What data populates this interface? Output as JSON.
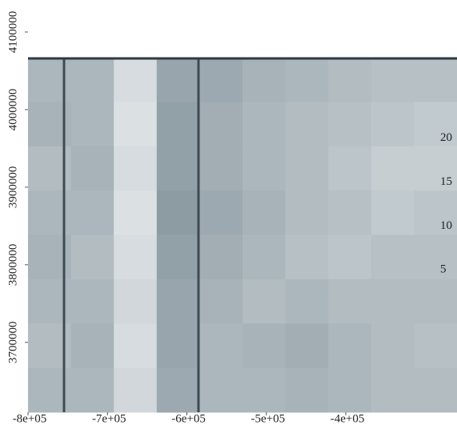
{
  "chart_data": {
    "type": "raster",
    "xlim": [
      -800000,
      -260000
    ],
    "ylim": [
      3610000,
      4067000
    ],
    "xticks": [
      {
        "value": -800000,
        "label": "-8e+05"
      },
      {
        "value": -700000,
        "label": "-7e+05"
      },
      {
        "value": -600000,
        "label": "-6e+05"
      },
      {
        "value": -500000,
        "label": "-5e+05"
      },
      {
        "value": -400000,
        "label": "-4e+05"
      }
    ],
    "yticks": [
      3700000,
      3800000,
      3900000,
      4000000,
      4100000
    ],
    "legend_ticks": [
      5,
      10,
      15,
      20
    ],
    "zlim": [
      0,
      25
    ],
    "z": [
      [
        12,
        12,
        20,
        8,
        9,
        11,
        12,
        13,
        14,
        14
      ],
      [
        11,
        12,
        21,
        7,
        10,
        12,
        13,
        14,
        15,
        16
      ],
      [
        13,
        11,
        20,
        7,
        10,
        12,
        13,
        15,
        17,
        17
      ],
      [
        12,
        12,
        21,
        6,
        9,
        11,
        13,
        14,
        16,
        15
      ],
      [
        11,
        13,
        20,
        7,
        10,
        12,
        14,
        15,
        14,
        14
      ],
      [
        12,
        12,
        19,
        8,
        11,
        13,
        12,
        13,
        13,
        13
      ],
      [
        13,
        11,
        20,
        8,
        12,
        11,
        10,
        12,
        13,
        14
      ],
      [
        12,
        12,
        19,
        9,
        12,
        12,
        11,
        12,
        13,
        13
      ]
    ]
  }
}
